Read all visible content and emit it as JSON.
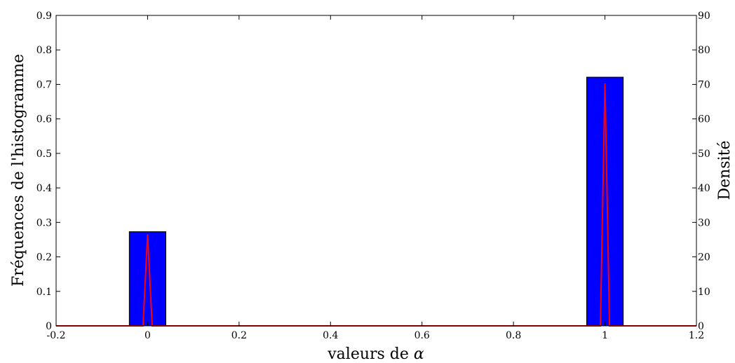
{
  "chart_data": {
    "type": "bar",
    "xlabel": "valeurs de",
    "xlabel_symbol": "α",
    "ylabel": "Fréquences de l'histogramme",
    "y2label": "Densité",
    "xlim": [
      -0.2,
      1.2
    ],
    "ylim": [
      0,
      0.9
    ],
    "y2lim": [
      0,
      90
    ],
    "x_ticks": [
      "-0.2",
      "0",
      "0.2",
      "0.4",
      "0.6",
      "0.8",
      "1",
      "1.2"
    ],
    "y_ticks": [
      "0",
      "0.1",
      "0.2",
      "0.3",
      "0.4",
      "0.5",
      "0.6",
      "0.7",
      "0.8",
      "0.9"
    ],
    "y2_ticks": [
      "0",
      "10",
      "20",
      "30",
      "40",
      "50",
      "60",
      "70",
      "80",
      "90"
    ],
    "grid": false,
    "bar_color": "#0000ff",
    "line_color": "#ff0000",
    "bars": [
      {
        "x_start": -0.04,
        "x_end": 0.04,
        "value": 0.273
      },
      {
        "x_start": 0.96,
        "x_end": 1.04,
        "value": 0.721
      }
    ],
    "density": {
      "x": [
        -0.2,
        -0.01,
        0.0,
        0.01,
        0.99,
        1.0,
        1.01,
        1.2
      ],
      "y": [
        0,
        0,
        26.5,
        0,
        0,
        70.3,
        0,
        0
      ]
    }
  }
}
